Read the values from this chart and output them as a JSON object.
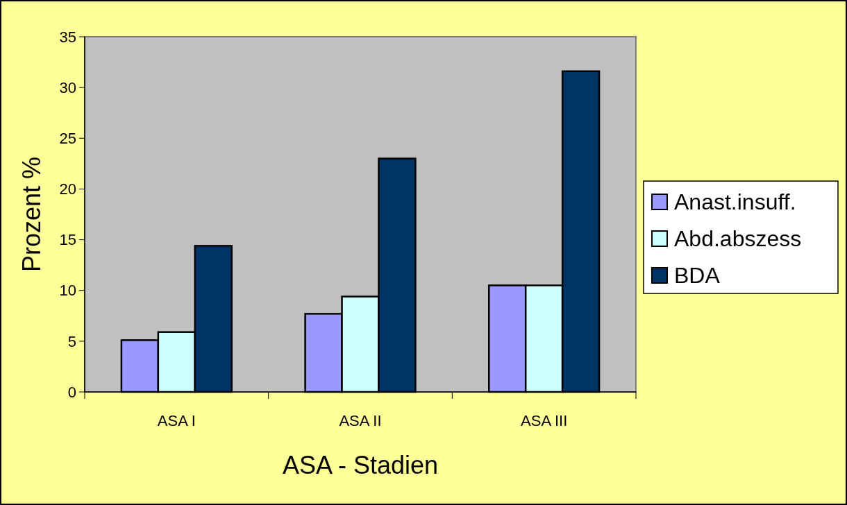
{
  "chart_data": {
    "type": "bar",
    "xlabel": "ASA - Stadien",
    "ylabel": "Prozent %",
    "categories": [
      "ASA I",
      "ASA II",
      "ASA III"
    ],
    "series": [
      {
        "name": "Anast.insuff.",
        "color": "#9999ff",
        "values": [
          5.1,
          7.7,
          10.5
        ]
      },
      {
        "name": "Abd.abszess",
        "color": "#ccffff",
        "values": [
          5.9,
          9.4,
          10.5
        ]
      },
      {
        "name": "BDA",
        "color": "#003366",
        "values": [
          14.4,
          23.0,
          31.6
        ]
      }
    ],
    "ylim": [
      0,
      35
    ],
    "yticks": [
      0,
      5,
      10,
      15,
      20,
      25,
      30,
      35
    ],
    "grid": false,
    "legend": "right"
  }
}
